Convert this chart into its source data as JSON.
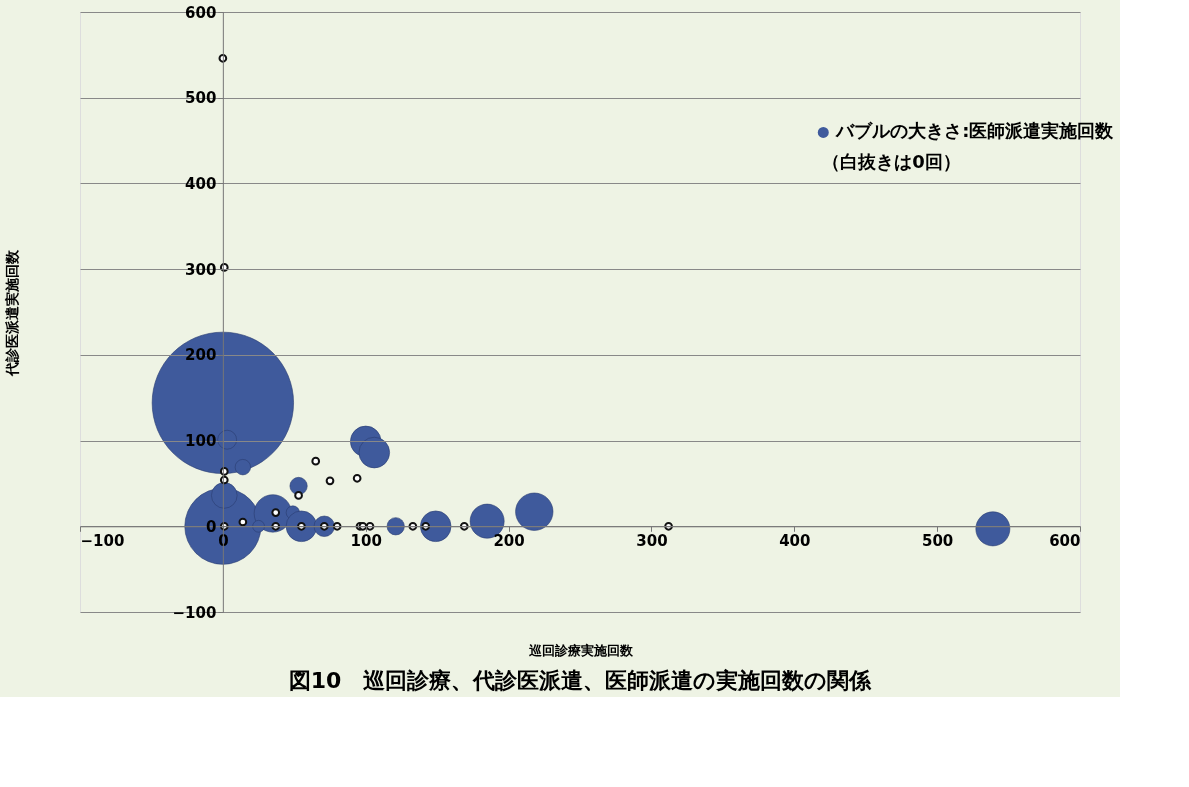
{
  "chart_data": {
    "type": "bubble",
    "title": "図10　巡回診療、代診医派遣、医師派遣の実施回数の関係",
    "xlabel": "巡回診療実施回数",
    "ylabel": "代診医派遣実施回数",
    "xlim": [
      -100,
      600
    ],
    "xticks": [
      -100,
      0,
      100,
      200,
      300,
      400,
      500,
      600
    ],
    "ylim": [
      -100,
      600
    ],
    "yticks": [
      -100,
      0,
      100,
      200,
      300,
      400,
      500,
      600
    ],
    "grid": "y",
    "legend": "top right",
    "annotations": [
      "（白抜きは0回）"
    ],
    "series": [
      {
        "name": "バブルの大きさ:医師派遣実施回数",
        "color": "#3f5a9c",
        "x": [
          0,
          0,
          3,
          14,
          1,
          35,
          53,
          49,
          55,
          25,
          71,
          100,
          106,
          121,
          149,
          185,
          218,
          539
        ],
        "values": [
          144,
          0,
          101,
          69,
          36,
          15,
          47,
          16,
          0,
          0,
          0,
          99,
          86,
          0,
          0,
          6,
          17,
          -3
        ],
        "sizes": [
          1,
          0.29,
          0.018,
          0.012,
          0.033,
          0.07,
          0.015,
          0.009,
          0.047,
          0.007,
          0.021,
          0.047,
          0.047,
          0.015,
          0.047,
          0.058,
          0.07,
          0.058
        ]
      },
      {
        "color": "#ffffff",
        "x": [
          0,
          1,
          1,
          1,
          65,
          75,
          94,
          53,
          37,
          14,
          1,
          37,
          55,
          71,
          80,
          96,
          98,
          103,
          133,
          142,
          169,
          312
        ],
        "values": [
          546,
          302,
          64,
          54,
          76,
          53,
          56,
          36,
          16,
          5,
          0,
          0,
          0,
          0,
          0,
          0,
          0,
          0,
          0,
          0,
          0,
          0
        ]
      }
    ]
  }
}
